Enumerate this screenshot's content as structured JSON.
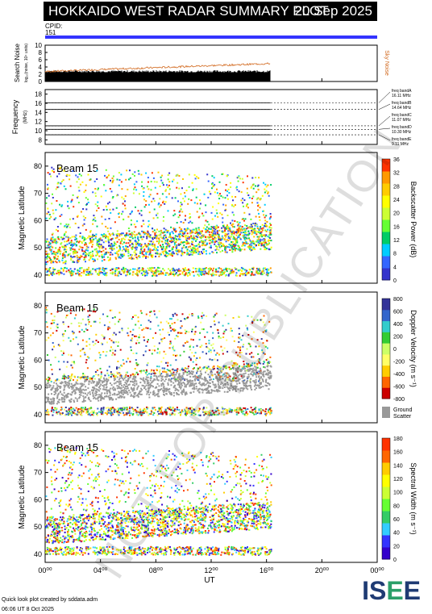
{
  "title": "HOKKAIDO WEST RADAR SUMMARY PLOT",
  "date": "20 Sep 2025",
  "cpid_label": "CPID:",
  "cpid_value": "151",
  "noise_panel": {
    "ylabel": "Search Noise",
    "ylabel2": "log₁₀(noise, 10⁴ units)",
    "yticks": [
      "10",
      "8",
      "6",
      "4",
      "2",
      "0"
    ],
    "right_label": "Sky Noise"
  },
  "freq_panel": {
    "ylabel": "Frequency",
    "unit": "(MHz)",
    "yticks": [
      "18",
      "16",
      "14",
      "12",
      "10",
      "8"
    ],
    "bands": [
      {
        "name": "freq bandA",
        "freq": "16.11 MHz",
        "value": 16.11
      },
      {
        "name": "freq bandB",
        "freq": "14.64 MHz",
        "value": 14.64
      },
      {
        "name": "freq bandC",
        "freq": "11.07 MHz",
        "value": 11.07
      },
      {
        "name": "freq bandD",
        "freq": "10.30 MHz",
        "value": 10.3
      },
      {
        "name": "freq bandE",
        "freq": "9.11 MHz",
        "value": 9.11
      }
    ]
  },
  "panels": [
    {
      "beam": "Beam 15",
      "ylabel": "Magnetic Latitude",
      "yticks": [
        "80",
        "70",
        "60",
        "50",
        "40"
      ],
      "cbar_label": "Backscatter Power (dB)",
      "cbar_ticks": [
        "36",
        "32",
        "28",
        "24",
        "20",
        "16",
        "12",
        "8",
        "4",
        "0"
      ]
    },
    {
      "beam": "Beam 15",
      "ylabel": "Magnetic Latitude",
      "yticks": [
        "80",
        "70",
        "60",
        "50",
        "40"
      ],
      "cbar_label": "Doppler Velocity (m s⁻¹)",
      "cbar_ticks": [
        "800",
        "600",
        "400",
        "200",
        "0",
        "-200",
        "-400",
        "-600",
        "-800"
      ],
      "ground_label": "Ground",
      "ground_label2": "Scatter"
    },
    {
      "beam": "Beam 15",
      "ylabel": "Magnetic Latitude",
      "yticks": [
        "80",
        "70",
        "60",
        "50",
        "40"
      ],
      "cbar_label": "Spectral Width (m s⁻¹)",
      "cbar_ticks": [
        "180",
        "160",
        "140",
        "120",
        "100",
        "80",
        "60",
        "40",
        "20",
        "0"
      ]
    }
  ],
  "xaxis": {
    "ticks": [
      "00⁰⁰",
      "04⁰⁰",
      "08⁰⁰",
      "12⁰⁰",
      "16⁰⁰",
      "20⁰⁰",
      "00⁰⁰"
    ],
    "label": "UT"
  },
  "watermark": "NOT FOR PUBLICATION",
  "footer1": "Quick look plot created by sddata.adm",
  "footer2": "06:06 UT  8 Oct 2025",
  "logo": "ISEE",
  "chart_data": {
    "type": "heatmap",
    "x_range_ut_hours": [
      0,
      24
    ],
    "y_range_mlat": [
      37,
      85
    ],
    "data_end_ut": 16.3,
    "sky_noise_level": 4,
    "search_noise_level": 2.5,
    "frequencies_mhz": [
      16.11,
      14.64,
      11.07,
      10.3,
      9.11
    ]
  },
  "colors": {
    "border": "#3333ff"
  }
}
